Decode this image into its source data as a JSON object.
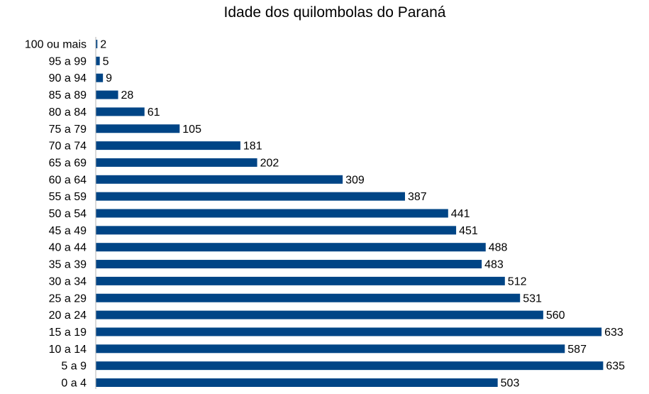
{
  "chart_data": {
    "type": "bar",
    "orientation": "horizontal",
    "title": "Idade dos quilombolas do Paraná",
    "xlabel": "",
    "ylabel": "",
    "grid": false,
    "legend": "none",
    "bar_color": "#004586",
    "xlim": [
      0,
      640
    ],
    "categories": [
      "100 ou mais",
      "95 a 99",
      "90 a 94",
      "85 a 89",
      "80 a 84",
      "75 a 79",
      "70 a 74",
      "65 a 69",
      "60 a 64",
      "55 a 59",
      "50 a 54",
      "45 a 49",
      "40 a 44",
      "35 a 39",
      "30 a 34",
      "25 a 29",
      "20 a 24",
      "15 a 19",
      "10 a 14",
      "5 a 9",
      "0 a 4"
    ],
    "values": [
      2,
      5,
      9,
      28,
      61,
      105,
      181,
      202,
      309,
      387,
      441,
      451,
      488,
      483,
      512,
      531,
      560,
      633,
      587,
      635,
      503
    ],
    "data_labels": [
      "2",
      "5",
      "9",
      "28",
      "61",
      "105",
      "181",
      "202",
      "309",
      "387",
      "441",
      "451",
      "488",
      "483",
      "512",
      "531",
      "560",
      "633",
      "587",
      "635",
      "503"
    ]
  }
}
